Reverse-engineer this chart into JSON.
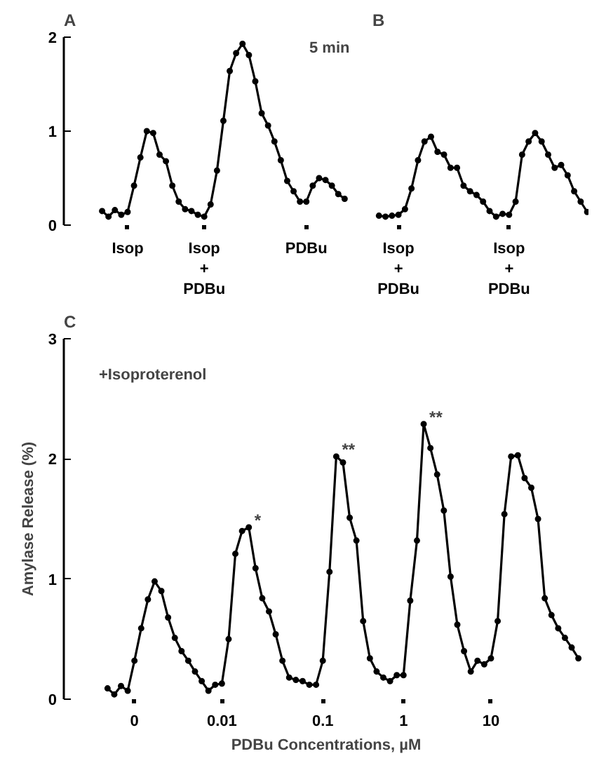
{
  "chart_data": [
    {
      "type": "line",
      "title": "A",
      "marker": "circle",
      "grid": false,
      "ylim": [
        0,
        2
      ],
      "yticks": [
        0,
        1,
        2
      ],
      "categories": [
        null,
        null,
        null,
        null,
        "Isop",
        null,
        null,
        null,
        null,
        null,
        null,
        null,
        null,
        null,
        null,
        null,
        "Isop\n+\nPDBu",
        null,
        null,
        null,
        null,
        null,
        null,
        null,
        null,
        null,
        null,
        null,
        null,
        null,
        null,
        null,
        "PDBu",
        null,
        null,
        null,
        null,
        null,
        null
      ],
      "annotations": [
        "5 min"
      ],
      "series": [
        {
          "color": "#000000",
          "values": [
            0.15,
            0.09,
            0.16,
            0.11,
            0.14,
            0.42,
            0.72,
            1.0,
            0.98,
            0.75,
            0.68,
            0.42,
            0.25,
            0.17,
            0.15,
            0.11,
            0.09,
            0.22,
            0.58,
            1.11,
            1.64,
            1.83,
            1.93,
            1.81,
            1.53,
            1.19,
            1.06,
            0.89,
            0.69,
            0.47,
            0.36,
            0.25,
            0.25,
            0.42,
            0.5,
            0.48,
            0.42,
            0.33,
            0.28
          ]
        }
      ]
    },
    {
      "type": "line",
      "title": "B",
      "marker": "circle",
      "grid": false,
      "tick_labels": "x",
      "ylim": [
        0,
        2
      ],
      "categories": [
        null,
        null,
        null,
        "Isop\n+\nPDBu",
        null,
        null,
        null,
        null,
        null,
        null,
        null,
        null,
        null,
        null,
        null,
        null,
        null,
        null,
        null,
        null,
        "Isop\n+\nPDBu",
        null,
        null,
        null,
        null,
        null,
        null,
        null,
        null,
        null,
        null,
        null,
        null
      ],
      "series": [
        {
          "color": "#000000",
          "values": [
            0.1,
            0.09,
            0.1,
            0.11,
            0.17,
            0.39,
            0.69,
            0.89,
            0.94,
            0.78,
            0.75,
            0.61,
            0.61,
            0.42,
            0.36,
            0.32,
            0.25,
            0.15,
            0.09,
            0.12,
            0.11,
            0.25,
            0.75,
            0.89,
            0.98,
            0.89,
            0.75,
            0.61,
            0.64,
            0.53,
            0.36,
            0.25,
            0.14
          ]
        }
      ]
    },
    {
      "type": "line",
      "title": "C",
      "marker": "circle",
      "grid": false,
      "xlabel": "PDBu Concentrations, µM",
      "ylabel": "Amylase Release (%)",
      "ylim": [
        0,
        3
      ],
      "yticks": [
        0,
        1,
        2,
        3
      ],
      "categories": [
        null,
        null,
        null,
        null,
        "0",
        null,
        null,
        null,
        null,
        null,
        null,
        null,
        null,
        null,
        null,
        null,
        null,
        "0.01",
        null,
        null,
        null,
        null,
        null,
        null,
        null,
        null,
        null,
        null,
        null,
        null,
        null,
        null,
        "0.1",
        null,
        null,
        null,
        null,
        null,
        null,
        null,
        null,
        null,
        null,
        null,
        "1",
        null,
        null,
        null,
        null,
        null,
        null,
        null,
        null,
        null,
        null,
        null,
        null,
        "10",
        null,
        null,
        null,
        null,
        null,
        null,
        null,
        null,
        null,
        null,
        null,
        null,
        null
      ],
      "annotations": [
        "+Isoproterenol"
      ],
      "series": [
        {
          "color": "#000000",
          "values": [
            0.09,
            0.04,
            0.11,
            0.07,
            0.32,
            0.59,
            0.83,
            0.98,
            0.9,
            0.68,
            0.51,
            0.4,
            0.32,
            0.23,
            0.15,
            0.07,
            0.12,
            0.13,
            0.5,
            1.21,
            1.4,
            1.43,
            1.09,
            0.84,
            0.73,
            0.54,
            0.32,
            0.18,
            0.16,
            0.15,
            0.12,
            0.12,
            0.32,
            1.06,
            2.02,
            1.97,
            1.51,
            1.32,
            0.65,
            0.34,
            0.23,
            0.18,
            0.15,
            0.2,
            0.2,
            0.82,
            1.32,
            2.29,
            2.09,
            1.87,
            1.57,
            1.02,
            0.62,
            0.4,
            0.23,
            0.32,
            0.29,
            0.34,
            0.65,
            1.54,
            2.02,
            2.03,
            1.84,
            1.76,
            1.5,
            0.84,
            0.7,
            0.59,
            0.51,
            0.43,
            0.34
          ],
          "value_labels": [
            null,
            null,
            null,
            null,
            null,
            null,
            null,
            null,
            null,
            null,
            null,
            null,
            null,
            null,
            null,
            null,
            null,
            null,
            null,
            null,
            null,
            "*",
            null,
            null,
            null,
            null,
            null,
            null,
            null,
            null,
            null,
            null,
            null,
            null,
            "**",
            null,
            null,
            null,
            null,
            null,
            null,
            null,
            null,
            null,
            null,
            null,
            null,
            "**",
            null,
            null,
            null,
            null,
            null,
            null,
            null,
            null,
            null,
            null,
            null,
            null,
            null,
            null,
            null,
            null,
            null,
            null,
            null,
            null,
            null,
            null,
            null
          ]
        }
      ]
    }
  ]
}
